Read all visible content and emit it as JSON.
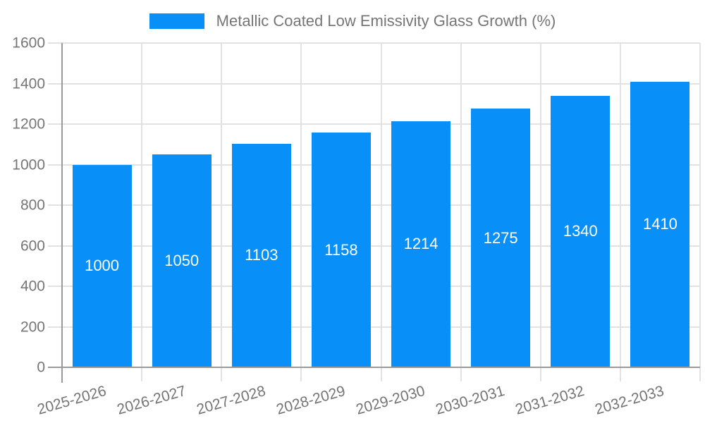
{
  "legend": {
    "label": "Metallic Coated Low Emissivity Glass Growth (%)"
  },
  "chart_data": {
    "type": "bar",
    "title": "Metallic Coated Low Emissivity Glass Growth (%)",
    "series_name": "Metallic Coated Low Emissivity Glass Growth (%)",
    "categories": [
      "2025-2026",
      "2026-2027",
      "2027-2028",
      "2028-2029",
      "2029-2030",
      "2030-2031",
      "2031-2032",
      "2032-2033"
    ],
    "values": [
      1000,
      1050,
      1103,
      1158,
      1214,
      1275,
      1340,
      1410
    ],
    "xlabel": "",
    "ylabel": "",
    "ylim": [
      0,
      1600
    ],
    "yticks": [
      0,
      200,
      400,
      600,
      800,
      1000,
      1200,
      1400,
      1600
    ],
    "grid": true,
    "bar_value_labels_shown": true,
    "legend_position": "top-center",
    "colors": {
      "bar": "#0890f8",
      "bar_label": "#ffffff",
      "grid": "#e2e2e2",
      "axis": "#9a9a9a",
      "tick_label": "#757575",
      "legend_text": "#757575",
      "background": "#ffffff"
    }
  }
}
